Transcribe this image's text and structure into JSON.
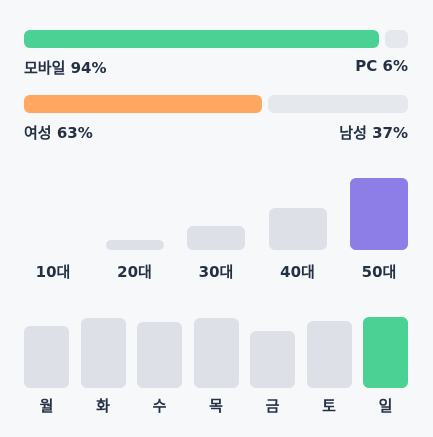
{
  "device_split": {
    "left_label": "모바일 94%",
    "right_label": "PC 6%",
    "left_value": 94,
    "right_value": 6,
    "left_color": "#4cd195",
    "right_color": "#e5e8ec"
  },
  "gender_split": {
    "left_label": "여성 63%",
    "right_label": "남성 37%",
    "left_value": 63,
    "right_value": 37,
    "left_color": "#ffa661",
    "right_color": "#e5e8ec"
  },
  "chart_data": [
    {
      "type": "bar",
      "categories": [
        "10대",
        "20대",
        "30대",
        "40대",
        "50대"
      ],
      "values": [
        0,
        10,
        24,
        42,
        72
      ],
      "ylim": [
        0,
        72
      ],
      "highlight_index": 4,
      "colors": {
        "base": "#dde1e7",
        "highlight": "#8d7ee7"
      }
    },
    {
      "type": "bar",
      "categories": [
        "월",
        "화",
        "수",
        "목",
        "금",
        "토",
        "일"
      ],
      "values": [
        62,
        70,
        66,
        70,
        57,
        67,
        71
      ],
      "ylim": [
        0,
        71
      ],
      "highlight_index": 6,
      "colors": {
        "base": "#dde1e7",
        "highlight": "#4cd195"
      }
    }
  ]
}
